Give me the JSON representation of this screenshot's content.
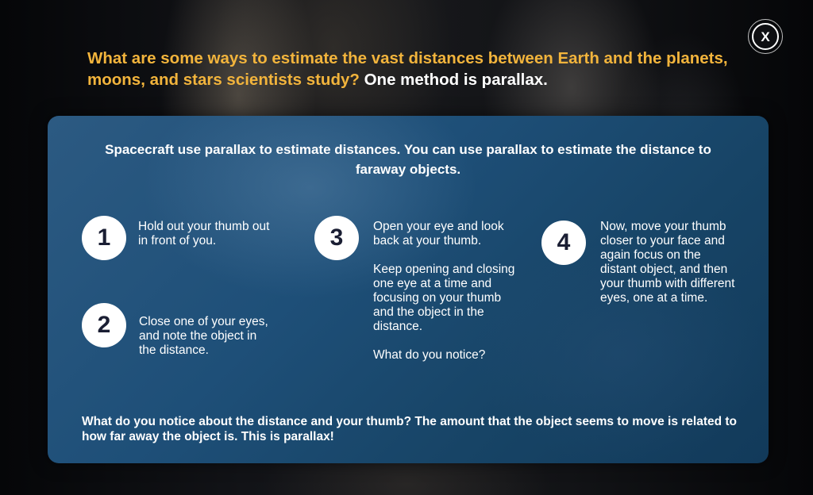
{
  "close_button": {
    "label": "X"
  },
  "headline": {
    "highlight": "What are some ways to estimate the vast distances between Earth and the planets, moons, and stars scientists study?",
    "plain": "One method is parallax."
  },
  "panel": {
    "intro": "Spacecraft use parallax to estimate distances.  You can use parallax to estimate the distance to faraway objects.",
    "steps": [
      {
        "number": "1",
        "paragraphs": [
          "Hold out your thumb out in front of you."
        ]
      },
      {
        "number": "2",
        "paragraphs": [
          "Close one of your eyes, and note the object in the distance."
        ]
      },
      {
        "number": "3",
        "paragraphs": [
          "Open your eye and look back at your thumb.",
          "Keep opening and closing one eye at a time and focusing on your thumb and the object in the distance.",
          "What do you notice?"
        ]
      },
      {
        "number": "4",
        "paragraphs": [
          "Now, move your thumb closer to your face and again focus on the distant object, and then your thumb with different eyes, one at a time."
        ]
      }
    ],
    "conclusion": "What do you notice about the distance and your thumb? The amount that the object seems to move is related to how far away the object is. This is parallax!"
  },
  "colors": {
    "headline_highlight": "#f2b43c",
    "text": "#ffffff",
    "panel": "#1e4f78",
    "step_number": "#1a1e33"
  }
}
